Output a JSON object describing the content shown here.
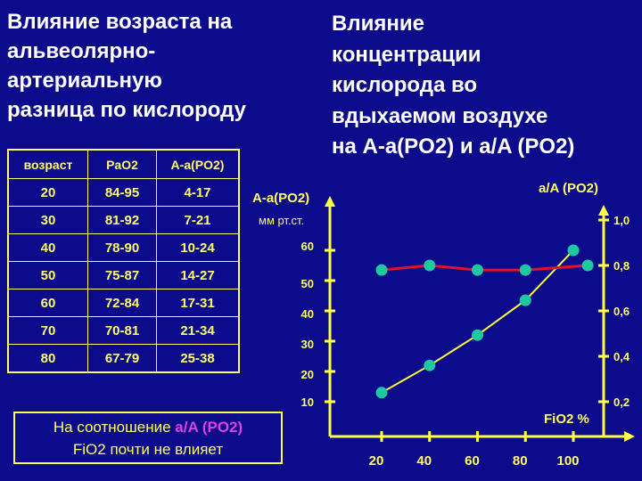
{
  "left_title": "Влияние возраста на\nальвеолярно-\nартериальную\nразница по кислороду",
  "right_title": "Влияние\nконцентрации\nкислорода во\nвдыхаемом воздухе\nна A-a(PO2) и a/A (PO2)",
  "table": {
    "headers": [
      "возраст",
      "PaO2",
      "A-a(PO2)"
    ],
    "rows": [
      [
        "20",
        "84-95",
        "4-17"
      ],
      [
        "30",
        "81-92",
        "7-21"
      ],
      [
        "40",
        "78-90",
        "10-24"
      ],
      [
        "50",
        "75-87",
        "14-27"
      ],
      [
        "60",
        "72-84",
        "17-31"
      ],
      [
        "70",
        "70-81",
        "21-34"
      ],
      [
        "80",
        "67-79",
        "25-38"
      ]
    ]
  },
  "note": {
    "before": "На соотношение ",
    "highlight": "a/A (PO2)",
    "line2": "FiO2 почти не влияет"
  },
  "colors": {
    "background": "#0b0b8c",
    "axis": "#ffff44",
    "aA_line": "#e01030",
    "Aa_line": "#ffff33",
    "points": "#20c8a0",
    "highlight": "#e040e0"
  },
  "chart_data": {
    "type": "line",
    "xlabel": "FiO2 %",
    "ylabel_left": "A-a(PO2)",
    "ylabel_left_unit": "мм рт.ст.",
    "ylabel_right": "a/A (PO2)",
    "x_ticks": [
      "20",
      "40",
      "60",
      "80",
      "100"
    ],
    "y_left_ticks": [
      "10",
      "20",
      "30",
      "40",
      "50",
      "60"
    ],
    "y_right_ticks": [
      "0,2",
      "0,4",
      "0,6",
      "0,8",
      "1,0"
    ],
    "y_left_range": [
      0,
      65
    ],
    "y_right_range": [
      0,
      1.05
    ],
    "series": [
      {
        "axis": "left",
        "x": [
          20,
          40,
          60,
          80,
          100
        ],
        "y": [
          13,
          22,
          32,
          43.5,
          60
        ]
      },
      {
        "axis": "right",
        "x": [
          20,
          40,
          60,
          80,
          106
        ],
        "y": [
          0.78,
          0.8,
          0.78,
          0.78,
          0.8
        ]
      }
    ]
  }
}
